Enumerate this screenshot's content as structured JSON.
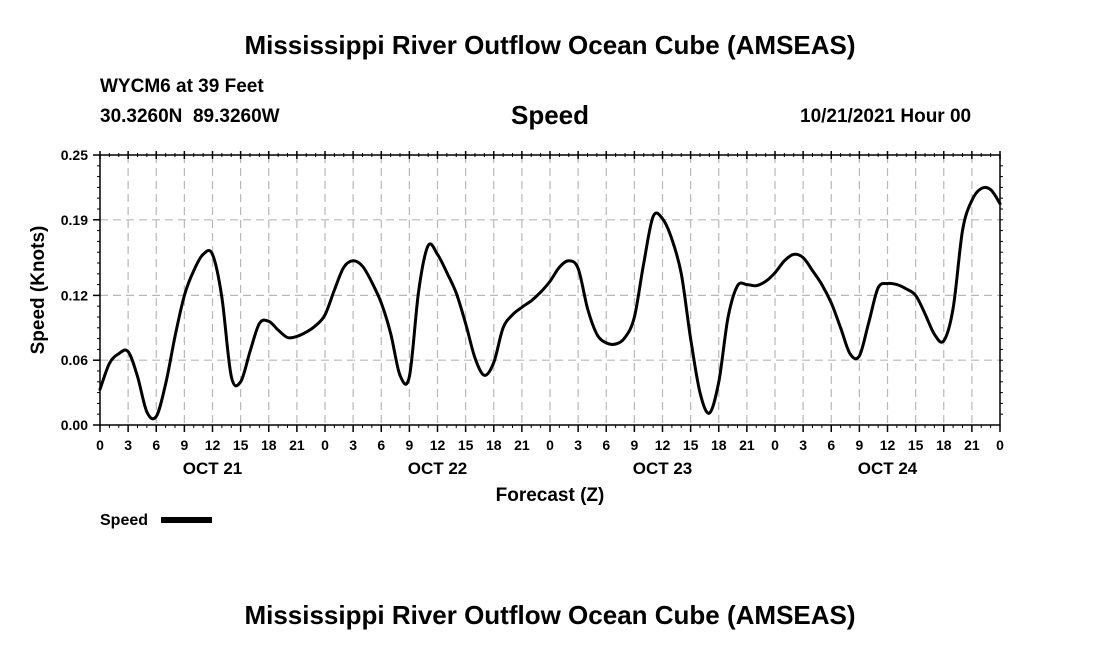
{
  "header": {
    "title": "Mississippi River Outflow Ocean Cube (AMSEAS)",
    "station": "WYCM6 at 39 Feet",
    "location": "30.3260N  89.3260W",
    "datetime": "10/21/2021 Hour 00"
  },
  "footer": {
    "title": "Mississippi River Outflow Ocean Cube (AMSEAS)"
  },
  "chart_data": {
    "type": "line",
    "title": "Speed",
    "xlabel": "Forecast (Z)",
    "ylabel": "Speed (Knots)",
    "xlim": [
      0,
      96
    ],
    "ylim": [
      0,
      0.25
    ],
    "yticks": [
      0.0,
      0.06,
      0.12,
      0.19,
      0.25
    ],
    "ytick_labels": [
      "0.00",
      "0.06",
      "0.12",
      "0.19",
      "0.25"
    ],
    "xtick_hours": [
      0,
      3,
      6,
      9,
      12,
      15,
      18,
      21,
      24,
      27,
      30,
      33,
      36,
      39,
      42,
      45,
      48,
      51,
      54,
      57,
      60,
      63,
      66,
      69,
      72,
      75,
      78,
      81,
      84,
      87,
      90,
      93,
      96
    ],
    "xtick_labels": [
      "0",
      "3",
      "6",
      "9",
      "12",
      "15",
      "18",
      "21",
      "0",
      "3",
      "6",
      "9",
      "12",
      "15",
      "18",
      "21",
      "0",
      "3",
      "6",
      "9",
      "12",
      "15",
      "18",
      "21",
      "0",
      "3",
      "6",
      "9",
      "12",
      "15",
      "18",
      "21",
      "0"
    ],
    "day_labels": [
      {
        "hour": 12,
        "label": "OCT 21"
      },
      {
        "hour": 36,
        "label": "OCT 22"
      },
      {
        "hour": 60,
        "label": "OCT 23"
      },
      {
        "hour": 84,
        "label": "OCT 24"
      }
    ],
    "grid": true,
    "legend": {
      "position": "bottom-left",
      "entries": [
        "Speed"
      ]
    },
    "series": [
      {
        "name": "Speed",
        "color": "#000000",
        "x": [
          0,
          1,
          2,
          3,
          4,
          5,
          6,
          7,
          8,
          9,
          10,
          11,
          12,
          13,
          14,
          15,
          16,
          17,
          18,
          19,
          20,
          21,
          22,
          23,
          24,
          25,
          26,
          27,
          28,
          29,
          30,
          31,
          32,
          33,
          34,
          35,
          36,
          37,
          38,
          39,
          40,
          41,
          42,
          43,
          44,
          45,
          46,
          47,
          48,
          49,
          50,
          51,
          52,
          53,
          54,
          55,
          56,
          57,
          58,
          59,
          60,
          61,
          62,
          63,
          64,
          65,
          66,
          67,
          68,
          69,
          70,
          71,
          72,
          73,
          74,
          75,
          76,
          77,
          78,
          79,
          80,
          81,
          82,
          83,
          84,
          85,
          86,
          87,
          88,
          89,
          90,
          91,
          92,
          93,
          94,
          95,
          96
        ],
        "values": [
          0.033,
          0.057,
          0.066,
          0.068,
          0.045,
          0.012,
          0.008,
          0.038,
          0.082,
          0.12,
          0.143,
          0.158,
          0.158,
          0.118,
          0.045,
          0.04,
          0.068,
          0.094,
          0.096,
          0.088,
          0.081,
          0.082,
          0.086,
          0.092,
          0.102,
          0.125,
          0.146,
          0.152,
          0.147,
          0.132,
          0.113,
          0.085,
          0.046,
          0.045,
          0.125,
          0.166,
          0.158,
          0.141,
          0.122,
          0.094,
          0.062,
          0.046,
          0.058,
          0.09,
          0.102,
          0.109,
          0.115,
          0.123,
          0.133,
          0.146,
          0.152,
          0.145,
          0.108,
          0.084,
          0.076,
          0.075,
          0.081,
          0.1,
          0.15,
          0.193,
          0.191,
          0.172,
          0.14,
          0.08,
          0.03,
          0.011,
          0.04,
          0.1,
          0.129,
          0.13,
          0.129,
          0.133,
          0.141,
          0.152,
          0.158,
          0.155,
          0.143,
          0.13,
          0.113,
          0.09,
          0.066,
          0.064,
          0.095,
          0.127,
          0.131,
          0.13,
          0.126,
          0.12,
          0.103,
          0.084,
          0.078,
          0.108,
          0.18,
          0.208,
          0.219,
          0.218,
          0.205
        ]
      }
    ]
  }
}
